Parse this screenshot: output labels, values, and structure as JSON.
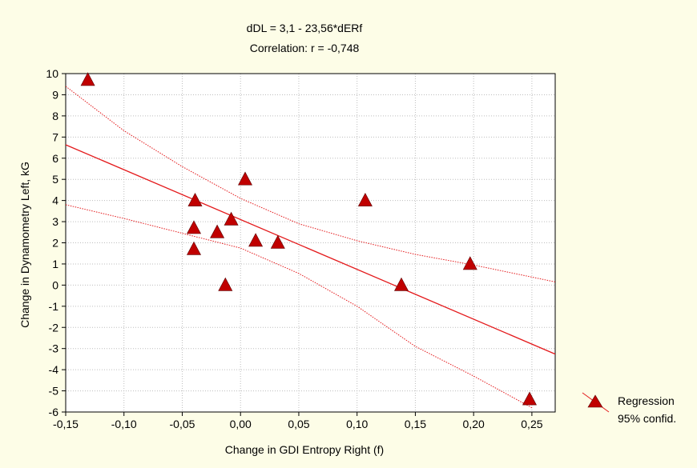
{
  "chart_data": {
    "type": "scatter",
    "title": "dDL = 3,1 - 23,56*dERf",
    "subtitle": "Correlation: r = -0,748",
    "xlabel": "Change in GDI Entropy Right (f)",
    "ylabel": "Change in Dynamometry Left, kG",
    "xlim": [
      -0.15,
      0.27
    ],
    "ylim": [
      -6,
      10
    ],
    "x_ticks": [
      "-0,15",
      "-0,10",
      "-0,05",
      "0,00",
      "0,05",
      "0,10",
      "0,15",
      "0,20",
      "0,25"
    ],
    "x_tick_values": [
      -0.15,
      -0.1,
      -0.05,
      0.0,
      0.05,
      0.1,
      0.15,
      0.2,
      0.25
    ],
    "y_ticks": [
      "-6",
      "-5",
      "-4",
      "-3",
      "-2",
      "-1",
      "0",
      "1",
      "2",
      "3",
      "4",
      "5",
      "6",
      "7",
      "8",
      "9",
      "10"
    ],
    "y_tick_values": [
      -6,
      -5,
      -4,
      -3,
      -2,
      -1,
      0,
      1,
      2,
      3,
      4,
      5,
      6,
      7,
      8,
      9,
      10
    ],
    "grid": true,
    "legend": {
      "placement": "right",
      "entries": [
        "Regression",
        "95% confid."
      ]
    },
    "points": [
      {
        "x": -0.131,
        "y": 9.7
      },
      {
        "x": -0.039,
        "y": 4.0
      },
      {
        "x": -0.04,
        "y": 2.7
      },
      {
        "x": -0.04,
        "y": 1.7
      },
      {
        "x": -0.02,
        "y": 2.5
      },
      {
        "x": -0.013,
        "y": 0.0
      },
      {
        "x": -0.008,
        "y": 3.1
      },
      {
        "x": 0.004,
        "y": 5.0
      },
      {
        "x": 0.013,
        "y": 2.1
      },
      {
        "x": 0.032,
        "y": 2.0
      },
      {
        "x": 0.107,
        "y": 4.0
      },
      {
        "x": 0.138,
        "y": 0.0
      },
      {
        "x": 0.197,
        "y": 1.0
      },
      {
        "x": 0.248,
        "y": -5.4
      }
    ],
    "regression": {
      "intercept": 3.1,
      "slope": -23.56
    },
    "confidence_upper": [
      {
        "x": -0.15,
        "y": 9.4
      },
      {
        "x": -0.1,
        "y": 7.3
      },
      {
        "x": -0.05,
        "y": 5.6
      },
      {
        "x": 0.0,
        "y": 4.1
      },
      {
        "x": 0.05,
        "y": 2.9
      },
      {
        "x": 0.1,
        "y": 2.1
      },
      {
        "x": 0.15,
        "y": 1.45
      },
      {
        "x": 0.2,
        "y": 0.95
      },
      {
        "x": 0.27,
        "y": 0.15
      }
    ],
    "confidence_lower": [
      {
        "x": -0.15,
        "y": 3.8
      },
      {
        "x": -0.1,
        "y": 3.15
      },
      {
        "x": -0.05,
        "y": 2.45
      },
      {
        "x": 0.0,
        "y": 1.75
      },
      {
        "x": 0.05,
        "y": 0.55
      },
      {
        "x": 0.1,
        "y": -1.0
      },
      {
        "x": 0.15,
        "y": -2.9
      },
      {
        "x": 0.2,
        "y": -4.3
      },
      {
        "x": 0.25,
        "y": -5.8
      }
    ],
    "colors": {
      "background": "#fdfde7",
      "plot_area": "#ffffff",
      "series": "#c00000",
      "line": "#e41a1c"
    }
  }
}
